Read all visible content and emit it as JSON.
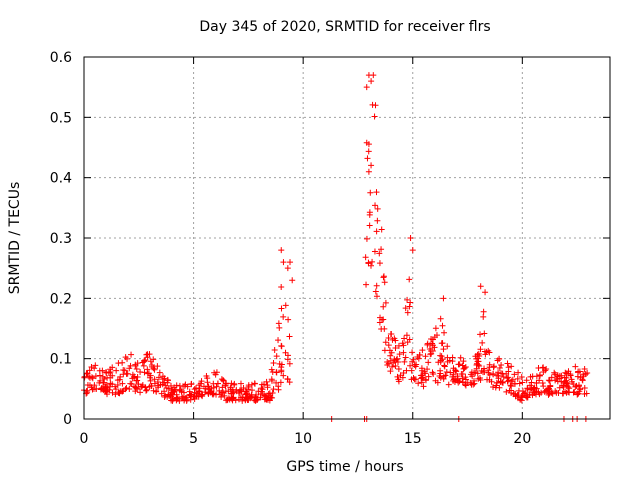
{
  "chart_data": {
    "type": "scatter",
    "title": "Day 345 of 2020, SRMTID for receiver flrs",
    "xlabel": "GPS time / hours",
    "ylabel": "SRMTID / TECUs",
    "xlim": [
      0,
      24
    ],
    "ylim": [
      0,
      0.6
    ],
    "xticks": [
      0,
      5,
      10,
      15,
      20
    ],
    "yticks": [
      0,
      0.1,
      0.2,
      0.3,
      0.4,
      0.5,
      0.6
    ],
    "xtick_labels": [
      "0",
      "5",
      "10",
      "15",
      "20"
    ],
    "ytick_labels": [
      "0",
      "0.1",
      "0.2",
      "0.3",
      "0.4",
      "0.5",
      "0.6"
    ],
    "grid": true,
    "marker": "+",
    "color": "#ff0000",
    "series": [
      {
        "name": "SRMTID",
        "envelope": [
          [
            0.0,
            0.04,
            0.07
          ],
          [
            0.5,
            0.05,
            0.1
          ],
          [
            1.0,
            0.04,
            0.08
          ],
          [
            1.5,
            0.04,
            0.09
          ],
          [
            2.0,
            0.05,
            0.11
          ],
          [
            2.5,
            0.04,
            0.1
          ],
          [
            3.0,
            0.05,
            0.11
          ],
          [
            3.5,
            0.04,
            0.08
          ],
          [
            4.0,
            0.03,
            0.06
          ],
          [
            4.5,
            0.03,
            0.06
          ],
          [
            5.0,
            0.03,
            0.06
          ],
          [
            5.5,
            0.04,
            0.07
          ],
          [
            6.0,
            0.04,
            0.08
          ],
          [
            6.5,
            0.03,
            0.06
          ],
          [
            7.0,
            0.03,
            0.06
          ],
          [
            7.5,
            0.03,
            0.06
          ],
          [
            8.0,
            0.03,
            0.06
          ],
          [
            8.5,
            0.03,
            0.07
          ],
          [
            8.8,
            0.04,
            0.15
          ],
          [
            9.0,
            0.06,
            0.22
          ],
          [
            9.2,
            0.07,
            0.2
          ],
          [
            9.4,
            0.06,
            0.19
          ],
          [
            12.8,
            0.2,
            0.5
          ],
          [
            13.0,
            0.26,
            0.56
          ],
          [
            13.2,
            0.24,
            0.54
          ],
          [
            13.4,
            0.18,
            0.42
          ],
          [
            13.6,
            0.14,
            0.32
          ],
          [
            13.8,
            0.09,
            0.22
          ],
          [
            14.0,
            0.07,
            0.16
          ],
          [
            14.3,
            0.06,
            0.13
          ],
          [
            14.6,
            0.07,
            0.14
          ],
          [
            14.8,
            0.08,
            0.26
          ],
          [
            15.0,
            0.06,
            0.12
          ],
          [
            15.5,
            0.05,
            0.12
          ],
          [
            16.0,
            0.06,
            0.15
          ],
          [
            16.3,
            0.06,
            0.17
          ],
          [
            16.7,
            0.05,
            0.1
          ],
          [
            17.0,
            0.06,
            0.11
          ],
          [
            17.5,
            0.05,
            0.09
          ],
          [
            18.0,
            0.06,
            0.12
          ],
          [
            18.2,
            0.07,
            0.19
          ],
          [
            18.5,
            0.05,
            0.11
          ],
          [
            19.0,
            0.05,
            0.1
          ],
          [
            19.5,
            0.04,
            0.09
          ],
          [
            20.0,
            0.03,
            0.07
          ],
          [
            20.5,
            0.04,
            0.08
          ],
          [
            21.0,
            0.04,
            0.09
          ],
          [
            21.5,
            0.04,
            0.08
          ],
          [
            22.0,
            0.04,
            0.08
          ],
          [
            22.5,
            0.04,
            0.09
          ],
          [
            23.0,
            0.04,
            0.08
          ]
        ],
        "spikes": [
          [
            9.0,
            0.28
          ],
          [
            9.1,
            0.26
          ],
          [
            9.3,
            0.25
          ],
          [
            9.4,
            0.26
          ],
          [
            9.5,
            0.23
          ],
          [
            12.9,
            0.55
          ],
          [
            13.0,
            0.57
          ],
          [
            13.1,
            0.56
          ],
          [
            13.2,
            0.57
          ],
          [
            13.3,
            0.52
          ],
          [
            14.9,
            0.3
          ],
          [
            15.0,
            0.28
          ],
          [
            16.4,
            0.2
          ],
          [
            18.1,
            0.22
          ],
          [
            18.3,
            0.21
          ]
        ],
        "zero_markers": [
          11.3,
          12.8,
          12.9,
          17.1,
          21.9,
          22.3,
          22.5,
          22.9
        ]
      }
    ]
  }
}
